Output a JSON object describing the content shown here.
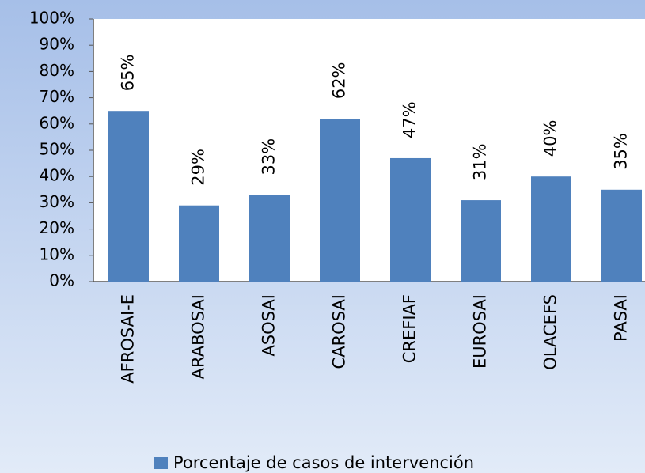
{
  "chart_data": {
    "type": "bar",
    "categories": [
      "AFROSAI-E",
      "ARABOSAI",
      "ASOSAI",
      "CAROSAI",
      "CREFIAF",
      "EUROSAI",
      "OLACEFS",
      "PASAI"
    ],
    "series": [
      {
        "name": "Porcentaje de casos de intervención",
        "color": "#4f81bd",
        "values": [
          65,
          29,
          33,
          62,
          47,
          31,
          40,
          35
        ],
        "value_labels": [
          "65%",
          "29%",
          "33%",
          "62%",
          "47%",
          "31%",
          "40%",
          "35%"
        ]
      }
    ],
    "ylim": [
      0,
      100
    ],
    "yticks": [
      {
        "value": 0,
        "label": "0%"
      },
      {
        "value": 10,
        "label": "10%"
      },
      {
        "value": 20,
        "label": "20%"
      },
      {
        "value": 30,
        "label": "30%"
      },
      {
        "value": 40,
        "label": "40%"
      },
      {
        "value": 50,
        "label": "50%"
      },
      {
        "value": 60,
        "label": "60%"
      },
      {
        "value": 70,
        "label": "70%"
      },
      {
        "value": 80,
        "label": "80%"
      },
      {
        "value": 90,
        "label": "90%"
      },
      {
        "value": 100,
        "label": "100%"
      }
    ],
    "legend": "bottom"
  }
}
